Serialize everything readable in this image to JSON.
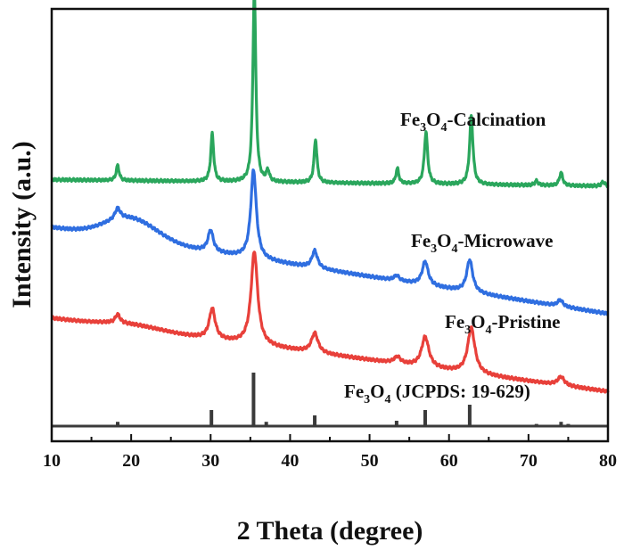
{
  "chart_data": {
    "type": "line",
    "title": "",
    "xlabel": "2 Theta (degree)",
    "ylabel": "Intensity (a.u.)",
    "xlim": [
      10,
      80
    ],
    "x_ticks": [
      10,
      20,
      30,
      40,
      50,
      60,
      70,
      80
    ],
    "y_ticks_shown": false,
    "grid": false,
    "legend": "none",
    "series": [
      {
        "name": "Fe3O4 (JCPDS: 19-629)",
        "label_parts": [
          "Fe",
          "3",
          "O",
          "4",
          " (JCPDS: 19-629)"
        ],
        "color": "#3a3a3a",
        "style": "stick",
        "peaks": [
          {
            "x": 18.3,
            "y": 8
          },
          {
            "x": 30.1,
            "y": 30
          },
          {
            "x": 35.4,
            "y": 100
          },
          {
            "x": 37.0,
            "y": 8
          },
          {
            "x": 43.1,
            "y": 20
          },
          {
            "x": 53.4,
            "y": 10
          },
          {
            "x": 57.0,
            "y": 30
          },
          {
            "x": 62.6,
            "y": 40
          },
          {
            "x": 71.0,
            "y": 4
          },
          {
            "x": 74.1,
            "y": 8
          },
          {
            "x": 75.0,
            "y": 4
          }
        ]
      },
      {
        "name": "Fe3O4-Pristine",
        "label_parts": [
          "Fe",
          "3",
          "O",
          "4",
          "-Pristine"
        ],
        "color": "#e8403a",
        "style": "pattern",
        "baseline_start": 0.285,
        "baseline_end": 0.115,
        "hump": {
          "x": 20,
          "h": 0.01,
          "w": 5
        },
        "peaks": [
          {
            "x": 18.3,
            "h": 0.02,
            "w": 0.35
          },
          {
            "x": 30.2,
            "h": 0.07,
            "w": 0.45
          },
          {
            "x": 35.5,
            "h": 0.215,
            "w": 0.5
          },
          {
            "x": 43.1,
            "h": 0.045,
            "w": 0.5
          },
          {
            "x": 53.5,
            "h": 0.015,
            "w": 0.5
          },
          {
            "x": 57.0,
            "h": 0.07,
            "w": 0.55
          },
          {
            "x": 62.8,
            "h": 0.105,
            "w": 0.55
          },
          {
            "x": 74.1,
            "h": 0.02,
            "w": 0.5
          }
        ]
      },
      {
        "name": "Fe3O4-Microwave",
        "label_parts": [
          "Fe",
          "3",
          "O",
          "4",
          "-Microwave"
        ],
        "color": "#2f6ee0",
        "style": "pattern",
        "baseline_start": 0.495,
        "baseline_end": 0.295,
        "hump": {
          "x": 20,
          "h": 0.05,
          "w": 4.5
        },
        "peaks": [
          {
            "x": 18.3,
            "h": 0.025,
            "w": 0.4
          },
          {
            "x": 30.0,
            "h": 0.05,
            "w": 0.4
          },
          {
            "x": 35.4,
            "h": 0.205,
            "w": 0.42
          },
          {
            "x": 43.1,
            "h": 0.04,
            "w": 0.42
          },
          {
            "x": 53.4,
            "h": 0.012,
            "w": 0.4
          },
          {
            "x": 57.0,
            "h": 0.055,
            "w": 0.45
          },
          {
            "x": 62.6,
            "h": 0.075,
            "w": 0.45
          },
          {
            "x": 74.0,
            "h": 0.015,
            "w": 0.4
          }
        ]
      },
      {
        "name": "Fe3O4-Calcination",
        "label_parts": [
          "Fe",
          "3",
          "O",
          "4",
          "-Calcination"
        ],
        "color": "#2aa65c",
        "style": "pattern",
        "baseline_start": 0.605,
        "baseline_end": 0.59,
        "hump": {
          "x": 20,
          "h": 0.0,
          "w": 5
        },
        "peaks": [
          {
            "x": 18.3,
            "h": 0.035,
            "w": 0.22
          },
          {
            "x": 30.2,
            "h": 0.11,
            "w": 0.22
          },
          {
            "x": 35.5,
            "h": 0.445,
            "w": 0.22
          },
          {
            "x": 37.2,
            "h": 0.025,
            "w": 0.22
          },
          {
            "x": 43.2,
            "h": 0.1,
            "w": 0.22
          },
          {
            "x": 53.5,
            "h": 0.035,
            "w": 0.22
          },
          {
            "x": 57.1,
            "h": 0.12,
            "w": 0.25
          },
          {
            "x": 62.8,
            "h": 0.16,
            "w": 0.25
          },
          {
            "x": 71.0,
            "h": 0.01,
            "w": 0.25
          },
          {
            "x": 74.1,
            "h": 0.03,
            "w": 0.25
          },
          {
            "x": 79.4,
            "h": 0.01,
            "w": 0.25
          }
        ]
      }
    ]
  }
}
